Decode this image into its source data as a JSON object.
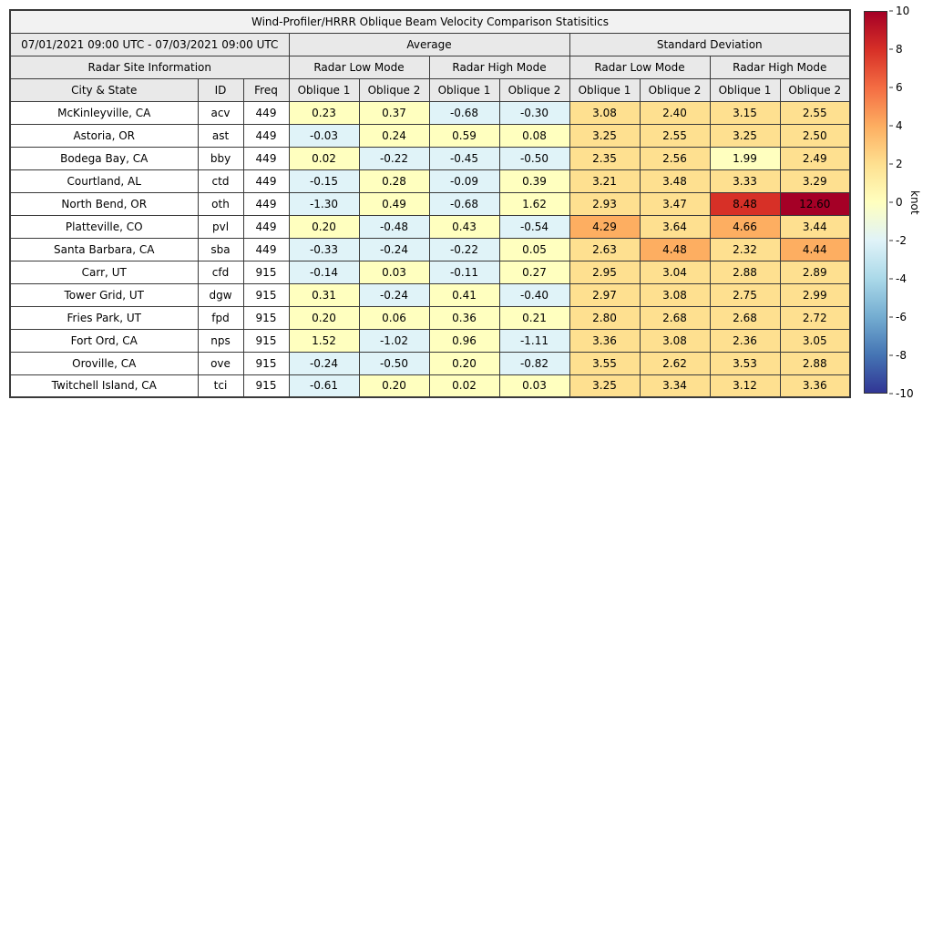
{
  "title": "Wind-Profiler/HRRR Oblique Beam Velocity Comparison Statisitics",
  "header": {
    "date_range": "07/01/2021 09:00 UTC - 07/03/2021 09:00 UTC",
    "avg_label": "Average",
    "std_label": "Standard Deviation",
    "site_info_label": "Radar Site Information",
    "mode_labels": [
      "Radar Low Mode",
      "Radar High Mode",
      "Radar Low Mode",
      "Radar High Mode"
    ],
    "columns": [
      "City & State",
      "ID",
      "Freq",
      "Oblique 1",
      "Oblique 2",
      "Oblique 1",
      "Oblique 2",
      "Oblique 1",
      "Oblique 2",
      "Oblique 1",
      "Oblique 2"
    ]
  },
  "colorbar": {
    "label": "knot",
    "min": -10,
    "max": 10,
    "ticks": [
      10,
      8,
      6,
      4,
      2,
      0,
      -2,
      -4,
      -6,
      -8,
      -10
    ],
    "gradient_top_to_bottom": [
      "#a50026",
      "#d73027",
      "#f46d43",
      "#fdae61",
      "#fee090",
      "#ffffbf",
      "#e0f3f8",
      "#abd9e9",
      "#74add1",
      "#4575b4",
      "#313695"
    ],
    "bin_colors_low_to_high": [
      "#313695",
      "#4575b4",
      "#74add1",
      "#abd9e9",
      "#e0f3f8",
      "#ffffbf",
      "#fee090",
      "#fdae61",
      "#f46d43",
      "#d73027",
      "#a50026"
    ]
  },
  "chart_data": {
    "type": "heatmap",
    "title": "Wind-Profiler/HRRR Oblique Beam Velocity Comparison Statisitics",
    "value_unit": "knot",
    "color_range": [
      -10,
      10
    ],
    "value_columns": [
      "Average Radar Low Mode Oblique 1",
      "Average Radar Low Mode Oblique 2",
      "Average Radar High Mode Oblique 1",
      "Average Radar High Mode Oblique 2",
      "Standard Deviation Radar Low Mode Oblique 1",
      "Standard Deviation Radar Low Mode Oblique 2",
      "Standard Deviation Radar High Mode Oblique 1",
      "Standard Deviation Radar High Mode Oblique 2"
    ],
    "rows": [
      {
        "city": "McKinleyville, CA",
        "id": "acv",
        "freq": "449",
        "values": [
          0.23,
          0.37,
          -0.68,
          -0.3,
          3.08,
          2.4,
          3.15,
          2.55
        ]
      },
      {
        "city": "Astoria, OR",
        "id": "ast",
        "freq": "449",
        "values": [
          -0.03,
          0.24,
          0.59,
          0.08,
          3.25,
          2.55,
          3.25,
          2.5
        ]
      },
      {
        "city": "Bodega Bay, CA",
        "id": "bby",
        "freq": "449",
        "values": [
          0.02,
          -0.22,
          -0.45,
          -0.5,
          2.35,
          2.56,
          1.99,
          2.49
        ]
      },
      {
        "city": "Courtland, AL",
        "id": "ctd",
        "freq": "449",
        "values": [
          -0.15,
          0.28,
          -0.09,
          0.39,
          3.21,
          3.48,
          3.33,
          3.29
        ]
      },
      {
        "city": "North Bend, OR",
        "id": "oth",
        "freq": "449",
        "values": [
          -1.3,
          0.49,
          -0.68,
          1.62,
          2.93,
          3.47,
          8.48,
          12.6
        ]
      },
      {
        "city": "Platteville, CO",
        "id": "pvl",
        "freq": "449",
        "values": [
          0.2,
          -0.48,
          0.43,
          -0.54,
          4.29,
          3.64,
          4.66,
          3.44
        ]
      },
      {
        "city": "Santa Barbara, CA",
        "id": "sba",
        "freq": "449",
        "values": [
          -0.33,
          -0.24,
          -0.22,
          0.05,
          2.63,
          4.48,
          2.32,
          4.44
        ]
      },
      {
        "city": "Carr, UT",
        "id": "cfd",
        "freq": "915",
        "values": [
          -0.14,
          0.03,
          -0.11,
          0.27,
          2.95,
          3.04,
          2.88,
          2.89
        ]
      },
      {
        "city": "Tower Grid, UT",
        "id": "dgw",
        "freq": "915",
        "values": [
          0.31,
          -0.24,
          0.41,
          -0.4,
          2.97,
          3.08,
          2.75,
          2.99
        ]
      },
      {
        "city": "Fries Park, UT",
        "id": "fpd",
        "freq": "915",
        "values": [
          0.2,
          0.06,
          0.36,
          0.21,
          2.8,
          2.68,
          2.68,
          2.72
        ]
      },
      {
        "city": "Fort Ord, CA",
        "id": "nps",
        "freq": "915",
        "values": [
          1.52,
          -1.02,
          0.96,
          -1.11,
          3.36,
          3.08,
          2.36,
          3.05
        ]
      },
      {
        "city": "Oroville, CA",
        "id": "ove",
        "freq": "915",
        "values": [
          -0.24,
          -0.5,
          0.2,
          -0.82,
          3.55,
          2.62,
          3.53,
          2.88
        ]
      },
      {
        "city": "Twitchell Island, CA",
        "id": "tci",
        "freq": "915",
        "values": [
          -0.61,
          0.2,
          0.02,
          0.03,
          3.25,
          3.34,
          3.12,
          3.36
        ]
      }
    ]
  }
}
